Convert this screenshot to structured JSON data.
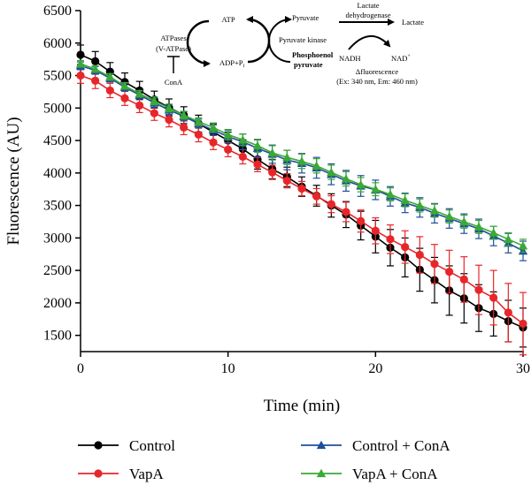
{
  "chart_data": {
    "type": "line",
    "xlabel": "Time (min)",
    "ylabel": "Fluorescence (AU)",
    "xlim": [
      0,
      30
    ],
    "ylim": [
      1250,
      6500
    ],
    "xticks": [
      0,
      10,
      20,
      30
    ],
    "yticks": [
      1500,
      2000,
      2500,
      3000,
      3500,
      4000,
      4500,
      5000,
      5500,
      6000,
      6500
    ],
    "grid": false,
    "legend_position": "bottom",
    "series": [
      {
        "name": "Control",
        "color": "#000000",
        "marker": "circle",
        "x": [
          0,
          1,
          2,
          3,
          4,
          5,
          6,
          7,
          8,
          9,
          10,
          11,
          12,
          13,
          14,
          15,
          16,
          17,
          18,
          19,
          20,
          21,
          22,
          23,
          24,
          25,
          26,
          27,
          28,
          29,
          30
        ],
        "y": [
          5820,
          5720,
          5560,
          5400,
          5270,
          5130,
          5010,
          4890,
          4760,
          4630,
          4500,
          4370,
          4210,
          4060,
          3940,
          3790,
          3650,
          3500,
          3360,
          3190,
          3020,
          2850,
          2700,
          2510,
          2350,
          2190,
          2070,
          1920,
          1830,
          1720,
          1620
        ],
        "err": [
          150,
          150,
          140,
          140,
          140,
          130,
          130,
          130,
          130,
          130,
          130,
          140,
          150,
          150,
          150,
          150,
          160,
          180,
          200,
          220,
          250,
          280,
          300,
          330,
          350,
          380,
          380,
          360,
          340,
          320,
          300
        ]
      },
      {
        "name": "VapA",
        "color": "#e8262a",
        "marker": "circle",
        "x": [
          0,
          1,
          2,
          3,
          4,
          5,
          6,
          7,
          8,
          9,
          10,
          11,
          12,
          13,
          14,
          15,
          16,
          17,
          18,
          19,
          20,
          21,
          22,
          23,
          24,
          25,
          26,
          27,
          28,
          29,
          30
        ],
        "y": [
          5500,
          5420,
          5270,
          5150,
          5040,
          4920,
          4820,
          4700,
          4590,
          4470,
          4360,
          4250,
          4130,
          4010,
          3880,
          3760,
          3640,
          3520,
          3400,
          3260,
          3110,
          2980,
          2860,
          2740,
          2600,
          2480,
          2360,
          2200,
          2080,
          1850,
          1680
        ],
        "err": [
          120,
          120,
          110,
          110,
          110,
          110,
          110,
          110,
          110,
          110,
          110,
          110,
          110,
          110,
          110,
          110,
          120,
          130,
          150,
          170,
          200,
          220,
          250,
          280,
          300,
          330,
          350,
          380,
          420,
          450,
          480
        ]
      },
      {
        "name": "Control + ConA",
        "color": "#1f4e9b",
        "marker": "triangle",
        "x": [
          0,
          1,
          2,
          3,
          4,
          5,
          6,
          7,
          8,
          9,
          10,
          11,
          12,
          13,
          14,
          15,
          16,
          17,
          18,
          19,
          20,
          21,
          22,
          23,
          24,
          25,
          26,
          27,
          28,
          29,
          30
        ],
        "y": [
          5650,
          5580,
          5460,
          5320,
          5200,
          5080,
          4970,
          4870,
          4760,
          4660,
          4560,
          4480,
          4380,
          4290,
          4200,
          4150,
          4080,
          3980,
          3880,
          3800,
          3740,
          3640,
          3540,
          3470,
          3380,
          3300,
          3220,
          3140,
          3030,
          2920,
          2800
        ],
        "err": [
          60,
          60,
          60,
          60,
          60,
          70,
          70,
          70,
          70,
          80,
          100,
          120,
          130,
          140,
          150,
          150,
          160,
          160,
          160,
          160,
          150,
          150,
          150,
          150,
          150,
          150,
          150,
          150,
          150,
          150,
          150
        ]
      },
      {
        "name": "VapA + ConA",
        "color": "#3aa935",
        "marker": "triangle",
        "x": [
          0,
          1,
          2,
          3,
          4,
          5,
          6,
          7,
          8,
          9,
          10,
          11,
          12,
          13,
          14,
          15,
          16,
          17,
          18,
          19,
          20,
          21,
          22,
          23,
          24,
          25,
          26,
          27,
          28,
          29,
          30
        ],
        "y": [
          5680,
          5600,
          5480,
          5340,
          5220,
          5110,
          5000,
          4890,
          4790,
          4700,
          4590,
          4510,
          4420,
          4310,
          4240,
          4180,
          4110,
          4010,
          3910,
          3820,
          3750,
          3670,
          3580,
          3500,
          3420,
          3330,
          3250,
          3170,
          3080,
          2980,
          2880
        ],
        "err": [
          50,
          50,
          50,
          50,
          50,
          60,
          60,
          60,
          60,
          70,
          80,
          90,
          100,
          110,
          110,
          110,
          110,
          110,
          110,
          110,
          100,
          100,
          100,
          100,
          100,
          100,
          100,
          100,
          100,
          100,
          100
        ]
      }
    ],
    "inset_diagram": {
      "atpases": "ATPases",
      "vatpase": "(V-ATPase)",
      "cona": "ConA",
      "atp": "ATP",
      "adp": "ADP+P",
      "adp_sub": "i",
      "pyruvate": "Pyruvate",
      "pyruvate_kinase": "Pyruvate kinase",
      "pep1": "Phosphoenol",
      "pep2": "pyruvate",
      "ldh1": "Lactate",
      "ldh2": "dehydrogenase",
      "lactate": "Lactate",
      "nadh": "NADH",
      "nad": "NAD",
      "nad_sup": "+",
      "dfluor": "Δfluorescence",
      "exem": "(Ex: 340 nm, Em: 460 nm)"
    }
  }
}
